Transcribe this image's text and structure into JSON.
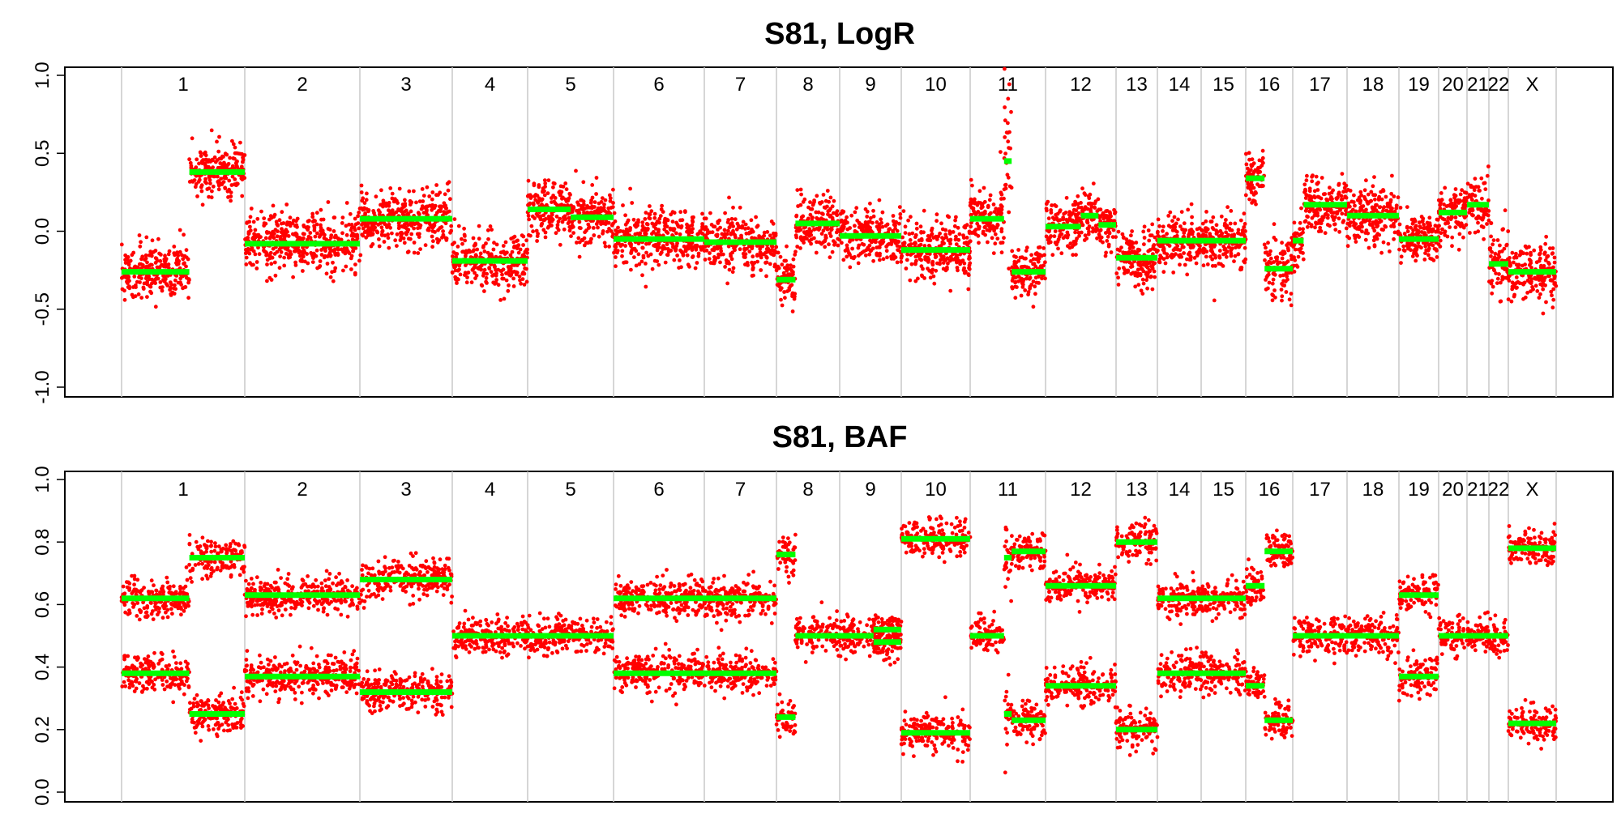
{
  "chart_data": [
    {
      "type": "scatter",
      "title": "S81, LogR",
      "ylim": [
        -1.0,
        1.0
      ],
      "yticks": [
        "-1.0",
        "-0.5",
        "0.0",
        "0.5",
        "1.0"
      ],
      "grid": false,
      "point_color": "#ff0000",
      "segment_color": "#00ff00",
      "chromosomes": [
        {
          "label": "1",
          "segments": [
            {
              "from": 0.0,
              "to": 0.55,
              "value": -0.26,
              "sd": 0.09
            },
            {
              "from": 0.55,
              "to": 1.0,
              "value": 0.38,
              "sd": 0.08
            }
          ]
        },
        {
          "label": "2",
          "segments": [
            {
              "from": 0.0,
              "to": 1.0,
              "value": -0.08,
              "sd": 0.09
            }
          ]
        },
        {
          "label": "3",
          "segments": [
            {
              "from": 0.0,
              "to": 1.0,
              "value": 0.08,
              "sd": 0.09
            }
          ]
        },
        {
          "label": "4",
          "segments": [
            {
              "from": 0.0,
              "to": 1.0,
              "value": -0.19,
              "sd": 0.09
            }
          ]
        },
        {
          "label": "5",
          "segments": [
            {
              "from": 0.0,
              "to": 0.5,
              "value": 0.14,
              "sd": 0.09
            },
            {
              "from": 0.5,
              "to": 1.0,
              "value": 0.09,
              "sd": 0.09
            }
          ]
        },
        {
          "label": "6",
          "segments": [
            {
              "from": 0.0,
              "to": 1.0,
              "value": -0.05,
              "sd": 0.09
            }
          ]
        },
        {
          "label": "7",
          "segments": [
            {
              "from": 0.0,
              "to": 1.0,
              "value": -0.07,
              "sd": 0.09
            }
          ]
        },
        {
          "label": "8",
          "segments": [
            {
              "from": 0.0,
              "to": 0.3,
              "value": -0.31,
              "sd": 0.09
            },
            {
              "from": 0.3,
              "to": 1.0,
              "value": 0.05,
              "sd": 0.08
            }
          ]
        },
        {
          "label": "9",
          "segments": [
            {
              "from": 0.0,
              "to": 1.0,
              "value": -0.03,
              "sd": 0.08
            }
          ]
        },
        {
          "label": "10",
          "segments": [
            {
              "from": 0.0,
              "to": 1.0,
              "value": -0.12,
              "sd": 0.09
            }
          ]
        },
        {
          "label": "11",
          "segments": [
            {
              "from": 0.0,
              "to": 0.45,
              "value": 0.08,
              "sd": 0.1
            },
            {
              "from": 0.45,
              "to": 0.55,
              "value": 0.45,
              "sd": 0.25
            },
            {
              "from": 0.55,
              "to": 1.0,
              "value": -0.26,
              "sd": 0.08
            }
          ]
        },
        {
          "label": "12",
          "segments": [
            {
              "from": 0.0,
              "to": 0.5,
              "value": 0.03,
              "sd": 0.08
            },
            {
              "from": 0.5,
              "to": 0.75,
              "value": 0.1,
              "sd": 0.08
            },
            {
              "from": 0.75,
              "to": 1.0,
              "value": 0.04,
              "sd": 0.08
            }
          ]
        },
        {
          "label": "13",
          "segments": [
            {
              "from": 0.0,
              "to": 1.0,
              "value": -0.17,
              "sd": 0.09
            }
          ]
        },
        {
          "label": "14",
          "segments": [
            {
              "from": 0.0,
              "to": 1.0,
              "value": -0.06,
              "sd": 0.08
            }
          ]
        },
        {
          "label": "15",
          "segments": [
            {
              "from": 0.0,
              "to": 1.0,
              "value": -0.06,
              "sd": 0.08
            }
          ]
        },
        {
          "label": "16",
          "segments": [
            {
              "from": 0.0,
              "to": 0.4,
              "value": 0.34,
              "sd": 0.08
            },
            {
              "from": 0.4,
              "to": 1.0,
              "value": -0.24,
              "sd": 0.1
            }
          ]
        },
        {
          "label": "17",
          "segments": [
            {
              "from": 0.0,
              "to": 0.2,
              "value": -0.06,
              "sd": 0.09
            },
            {
              "from": 0.2,
              "to": 1.0,
              "value": 0.17,
              "sd": 0.09
            }
          ]
        },
        {
          "label": "18",
          "segments": [
            {
              "from": 0.0,
              "to": 1.0,
              "value": 0.1,
              "sd": 0.09
            }
          ]
        },
        {
          "label": "19",
          "segments": [
            {
              "from": 0.0,
              "to": 1.0,
              "value": -0.05,
              "sd": 0.08
            }
          ]
        },
        {
          "label": "20",
          "segments": [
            {
              "from": 0.0,
              "to": 1.0,
              "value": 0.12,
              "sd": 0.09
            }
          ]
        },
        {
          "label": "21",
          "segments": [
            {
              "from": 0.0,
              "to": 1.0,
              "value": 0.17,
              "sd": 0.09
            }
          ]
        },
        {
          "label": "22",
          "segments": [
            {
              "from": 0.0,
              "to": 1.0,
              "value": -0.21,
              "sd": 0.09
            }
          ]
        },
        {
          "label": "X",
          "segments": [
            {
              "from": 0.0,
              "to": 1.0,
              "value": -0.26,
              "sd": 0.09
            }
          ]
        }
      ]
    },
    {
      "type": "scatter",
      "title": "S81, BAF",
      "ylim": [
        0.0,
        1.0
      ],
      "yticks": [
        "0.0",
        "0.2",
        "0.4",
        "0.6",
        "0.8",
        "1.0"
      ],
      "grid": false,
      "point_color": "#ff0000",
      "segment_color": "#00ff00",
      "chromosomes": [
        {
          "label": "1",
          "segments": [
            {
              "from": 0.0,
              "to": 0.55,
              "values": [
                0.62,
                0.38
              ],
              "sd": 0.03
            },
            {
              "from": 0.55,
              "to": 1.0,
              "values": [
                0.75,
                0.25
              ],
              "sd": 0.03
            }
          ]
        },
        {
          "label": "2",
          "segments": [
            {
              "from": 0.0,
              "to": 1.0,
              "values": [
                0.63,
                0.37
              ],
              "sd": 0.03
            }
          ]
        },
        {
          "label": "3",
          "segments": [
            {
              "from": 0.0,
              "to": 1.0,
              "values": [
                0.68,
                0.32
              ],
              "sd": 0.03
            }
          ]
        },
        {
          "label": "4",
          "segments": [
            {
              "from": 0.0,
              "to": 1.0,
              "values": [
                0.5
              ],
              "sd": 0.03
            }
          ]
        },
        {
          "label": "5",
          "segments": [
            {
              "from": 0.0,
              "to": 1.0,
              "values": [
                0.5
              ],
              "sd": 0.03
            }
          ]
        },
        {
          "label": "6",
          "segments": [
            {
              "from": 0.0,
              "to": 1.0,
              "values": [
                0.62,
                0.38
              ],
              "sd": 0.03
            }
          ]
        },
        {
          "label": "7",
          "segments": [
            {
              "from": 0.0,
              "to": 1.0,
              "values": [
                0.62,
                0.38
              ],
              "sd": 0.03
            }
          ]
        },
        {
          "label": "8",
          "segments": [
            {
              "from": 0.0,
              "to": 0.3,
              "values": [
                0.76,
                0.24
              ],
              "sd": 0.03
            },
            {
              "from": 0.3,
              "to": 1.0,
              "values": [
                0.5
              ],
              "sd": 0.03
            }
          ]
        },
        {
          "label": "9",
          "segments": [
            {
              "from": 0.0,
              "to": 0.55,
              "values": [
                0.5
              ],
              "sd": 0.03
            },
            {
              "from": 0.55,
              "to": 1.0,
              "values": [
                0.52,
                0.48
              ],
              "sd": 0.03
            }
          ]
        },
        {
          "label": "10",
          "segments": [
            {
              "from": 0.0,
              "to": 1.0,
              "values": [
                0.81,
                0.19
              ],
              "sd": 0.03
            }
          ]
        },
        {
          "label": "11",
          "segments": [
            {
              "from": 0.0,
              "to": 0.45,
              "values": [
                0.5
              ],
              "sd": 0.03
            },
            {
              "from": 0.45,
              "to": 0.55,
              "values": [
                0.75,
                0.25
              ],
              "sd": 0.06
            },
            {
              "from": 0.55,
              "to": 1.0,
              "values": [
                0.77,
                0.23
              ],
              "sd": 0.03
            }
          ]
        },
        {
          "label": "12",
          "segments": [
            {
              "from": 0.0,
              "to": 1.0,
              "values": [
                0.66,
                0.34
              ],
              "sd": 0.03
            }
          ]
        },
        {
          "label": "13",
          "segments": [
            {
              "from": 0.0,
              "to": 1.0,
              "values": [
                0.8,
                0.2
              ],
              "sd": 0.03
            }
          ]
        },
        {
          "label": "14",
          "segments": [
            {
              "from": 0.0,
              "to": 1.0,
              "values": [
                0.62,
                0.38
              ],
              "sd": 0.03
            }
          ]
        },
        {
          "label": "15",
          "segments": [
            {
              "from": 0.0,
              "to": 1.0,
              "values": [
                0.62,
                0.38
              ],
              "sd": 0.03
            }
          ]
        },
        {
          "label": "16",
          "segments": [
            {
              "from": 0.0,
              "to": 0.4,
              "values": [
                0.66,
                0.34
              ],
              "sd": 0.03
            },
            {
              "from": 0.4,
              "to": 1.0,
              "values": [
                0.77,
                0.23
              ],
              "sd": 0.03
            }
          ]
        },
        {
          "label": "17",
          "segments": [
            {
              "from": 0.0,
              "to": 1.0,
              "values": [
                0.5
              ],
              "sd": 0.03
            }
          ]
        },
        {
          "label": "18",
          "segments": [
            {
              "from": 0.0,
              "to": 1.0,
              "values": [
                0.5
              ],
              "sd": 0.03
            }
          ]
        },
        {
          "label": "19",
          "segments": [
            {
              "from": 0.0,
              "to": 1.0,
              "values": [
                0.63,
                0.37
              ],
              "sd": 0.03
            }
          ]
        },
        {
          "label": "20",
          "segments": [
            {
              "from": 0.0,
              "to": 1.0,
              "values": [
                0.5
              ],
              "sd": 0.03
            }
          ]
        },
        {
          "label": "21",
          "segments": [
            {
              "from": 0.0,
              "to": 1.0,
              "values": [
                0.5
              ],
              "sd": 0.03
            }
          ]
        },
        {
          "label": "22",
          "segments": [
            {
              "from": 0.0,
              "to": 1.0,
              "values": [
                0.5
              ],
              "sd": 0.03
            }
          ]
        },
        {
          "label": "X",
          "segments": [
            {
              "from": 0.0,
              "to": 1.0,
              "values": [
                0.78,
                0.22
              ],
              "sd": 0.03
            }
          ]
        }
      ]
    }
  ]
}
